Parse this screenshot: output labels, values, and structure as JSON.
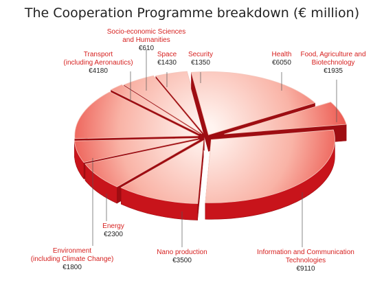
{
  "chart_data": {
    "type": "pie",
    "title": "The Cooperation Programme breakdown (€ million)",
    "unit": "€ million",
    "slices": [
      {
        "name": "Health",
        "value": 6050,
        "lines": [
          "Health"
        ],
        "value_label": "€6050"
      },
      {
        "name": "Food, Agriculture and Biotechnology",
        "value": 1935,
        "lines": [
          "Food, Agriculture and",
          "Biotechnology"
        ],
        "value_label": "€1935"
      },
      {
        "name": "Information and Communication Technologies",
        "value": 9110,
        "lines": [
          "Information and Communication",
          "Technologies"
        ],
        "value_label": "€9110"
      },
      {
        "name": "Nano production",
        "value": 3500,
        "lines": [
          "Nano production"
        ],
        "value_label": "€3500"
      },
      {
        "name": "Energy",
        "value": 2300,
        "lines": [
          "Energy"
        ],
        "value_label": "€2300"
      },
      {
        "name": "Environment (including Climate Change)",
        "value": 1800,
        "lines": [
          "Environment",
          "(including Climate Change)"
        ],
        "value_label": "€1800"
      },
      {
        "name": "Transport (including Aeronautics)",
        "value": 4180,
        "lines": [
          "Transport",
          "(including Aeronautics)"
        ],
        "value_label": "€4180"
      },
      {
        "name": "Socio-economic Sciences and Humanities",
        "value": 610,
        "lines": [
          "Socio-economic Sciences",
          "and Humanities"
        ],
        "value_label": "€610"
      },
      {
        "name": "Space",
        "value": 1430,
        "lines": [
          "Space"
        ],
        "value_label": "€1430"
      },
      {
        "name": "Security",
        "value": 1350,
        "lines": [
          "Security"
        ],
        "value_label": "€1350"
      }
    ],
    "colors": {
      "top_light": "#fff4f0",
      "top_dark": "#e83b34",
      "side": "#c8141b",
      "side_dark": "#9e0d12",
      "label_name": "#d6201f",
      "label_value": "#222222",
      "leader": "#555555"
    }
  }
}
